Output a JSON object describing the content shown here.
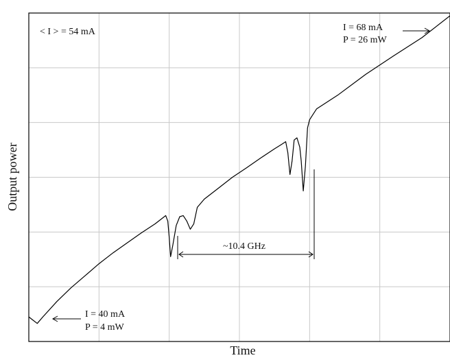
{
  "chart_data": {
    "type": "line",
    "title": "",
    "xlabel": "Time",
    "ylabel": "Output power",
    "grid": true,
    "x_divisions": 6,
    "y_divisions": 6,
    "xlim": [
      0,
      6
    ],
    "ylim": [
      0,
      6
    ],
    "series": [
      {
        "x": [
          0,
          0.05,
          0.12,
          0.2,
          0.4,
          0.6,
          0.8,
          1.0,
          1.2,
          1.4,
          1.6,
          1.8,
          1.95,
          1.98,
          2.0,
          2.02,
          2.05,
          2.1,
          2.15,
          2.2,
          2.25,
          2.3,
          2.35,
          2.4,
          2.5,
          2.7,
          2.9,
          3.1,
          3.3,
          3.5,
          3.6,
          3.66,
          3.69,
          3.72,
          3.75,
          3.78,
          3.82,
          3.86,
          3.88,
          3.91,
          3.94,
          3.97,
          4.0,
          4.05,
          4.1,
          4.4,
          4.8,
          5.2,
          5.6,
          6.0
        ],
        "y": [
          0.45,
          0.4,
          0.33,
          0.45,
          0.73,
          0.98,
          1.2,
          1.42,
          1.62,
          1.8,
          1.98,
          2.15,
          2.3,
          2.2,
          1.9,
          1.55,
          1.75,
          2.12,
          2.28,
          2.3,
          2.2,
          2.05,
          2.15,
          2.45,
          2.6,
          2.8,
          3.0,
          3.17,
          3.35,
          3.52,
          3.6,
          3.65,
          3.45,
          3.05,
          3.3,
          3.68,
          3.72,
          3.55,
          3.3,
          2.75,
          3.2,
          3.9,
          4.05,
          4.15,
          4.25,
          4.5,
          4.88,
          5.22,
          5.55,
          5.95
        ]
      }
    ],
    "annotations": [
      {
        "lines": [
          "< I > = 54 mA"
        ]
      },
      {
        "lines": [
          "I = 68 mA",
          "P = 26 mW"
        ]
      },
      {
        "lines": [
          "I = 40 mA",
          "P = 4 mW"
        ]
      },
      {
        "lines": [
          "~10.4 GHz"
        ]
      }
    ]
  }
}
